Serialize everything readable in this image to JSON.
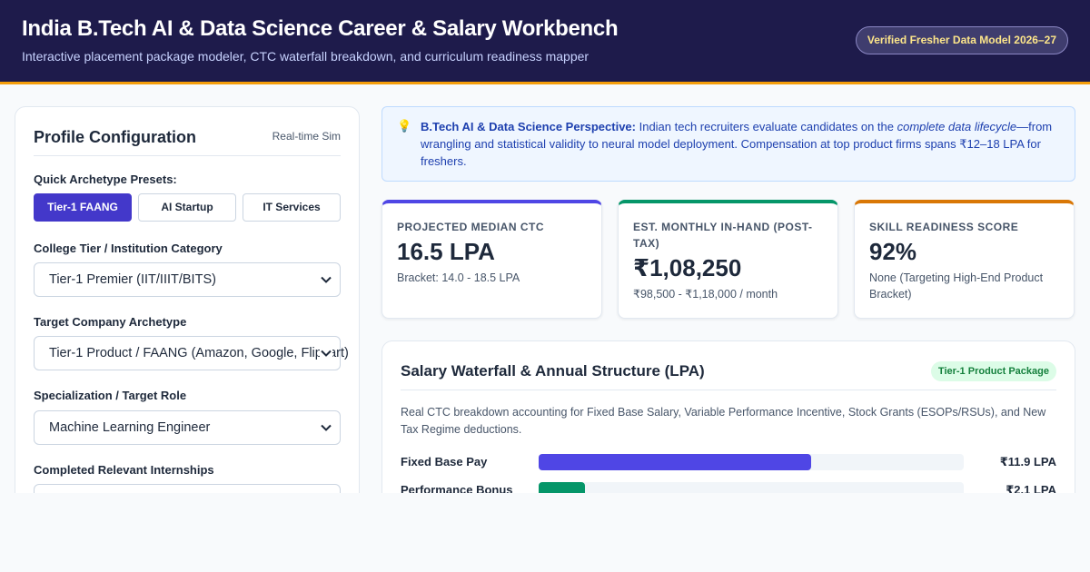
{
  "header": {
    "title": "India B.Tech AI & Data Science Career & Salary Workbench",
    "subtitle": "Interactive placement package modeler, CTC waterfall breakdown, and curriculum readiness mapper",
    "badge": "Verified Fresher Data Model 2026–27"
  },
  "profile": {
    "title": "Profile Configuration",
    "tag": "Real-time Sim",
    "presets_label": "Quick Archetype Presets:",
    "presets": [
      "Tier-1 FAANG",
      "AI Startup",
      "IT Services"
    ],
    "active_preset": "Tier-1 FAANG",
    "college_label": "College Tier / Institution Category",
    "college_value": "Tier-1 Premier (IIT/IIIT/BITS)",
    "company_label": "Target Company Archetype",
    "company_value": "Tier-1 Product / FAANG (Amazon, Google, Flipkart)",
    "role_label": "Specialization / Target Role",
    "role_value": "Machine Learning Engineer",
    "internships_label": "Completed Relevant Internships"
  },
  "tip": {
    "icon": "lightbulb-icon",
    "lead": "B.Tech AI & Data Science Perspective:",
    "text_before": " Indian tech recruiters evaluate candidates on the ",
    "emphasis": "complete data lifecycle",
    "text_after": "—from wrangling and statistical validity to neural model deployment. Compensation at top product firms spans ₹12–18 LPA for freshers."
  },
  "kpis": [
    {
      "label": "Projected Median CTC",
      "value": "16.5 LPA",
      "sub": "Bracket: 14.0 - 18.5 LPA",
      "accent": "#4f46e5"
    },
    {
      "label": "Est. Monthly In-Hand (Post-Tax)",
      "value": "₹1,08,250",
      "sub": "₹98,500 - ₹1,18,000 / month",
      "accent": "#059669"
    },
    {
      "label": "Skill Readiness Score",
      "value": "92%",
      "sub": "None (Targeting High-End Product Bracket)",
      "accent": "#d97706"
    }
  ],
  "waterfall": {
    "title": "Salary Waterfall & Annual Structure (LPA)",
    "badge": "Tier-1 Product Package",
    "description": "Real CTC breakdown accounting for Fixed Base Salary, Variable Performance Incentive, Stock Grants (ESOPs/RSUs), and New Tax Regime deductions.",
    "bars": [
      {
        "label": "Fixed Base Pay",
        "value": "₹11.9 LPA",
        "fraction": 0.64,
        "color": "#4f46e5"
      },
      {
        "label": "Performance Bonus",
        "value": "₹2.1 LPA",
        "fraction": 0.11,
        "color": "#059669"
      }
    ]
  }
}
